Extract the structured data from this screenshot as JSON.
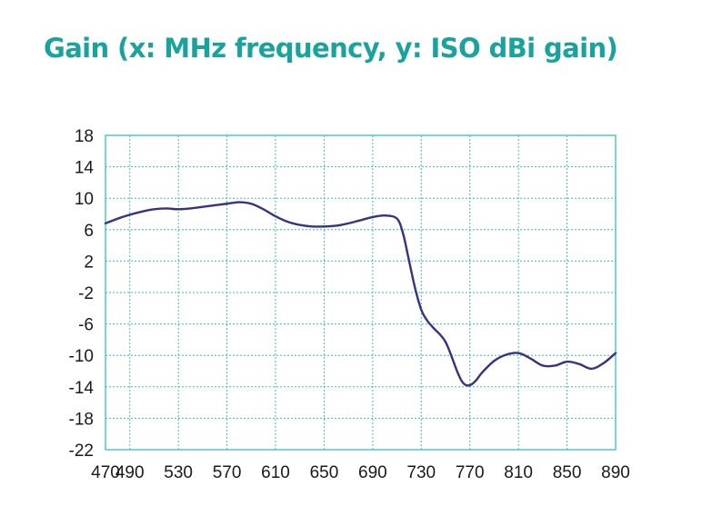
{
  "chart_data": {
    "type": "line",
    "title": "Gain (x: MHz frequency, y: ISO dBi gain)",
    "title_color": "#1aa39c",
    "grid": true,
    "grid_color": "#3cbcc4",
    "line_color": "#353383",
    "xlim": [
      470,
      890
    ],
    "ylim": [
      -22,
      18
    ],
    "x_ticks": [
      "470",
      "490",
      "530",
      "570",
      "610",
      "650",
      "690",
      "730",
      "770",
      "810",
      "850",
      "890"
    ],
    "y_ticks": [
      "18",
      "14",
      "10",
      "6",
      "2",
      "-2",
      "-6",
      "-10",
      "-14",
      "-18",
      "-22"
    ],
    "series": [
      {
        "x": [
          470,
          480,
          490,
          500,
          510,
          520,
          530,
          540,
          550,
          560,
          570,
          580,
          590,
          600,
          610,
          620,
          630,
          640,
          650,
          660,
          670,
          680,
          690,
          700,
          710,
          715,
          720,
          725,
          730,
          735,
          740,
          750,
          760,
          765,
          770,
          775,
          780,
          790,
          800,
          810,
          820,
          830,
          840,
          850,
          860,
          870,
          880,
          890
        ],
        "y": [
          6.8,
          7.4,
          7.9,
          8.3,
          8.6,
          8.7,
          8.6,
          8.7,
          8.9,
          9.1,
          9.3,
          9.5,
          9.3,
          8.6,
          7.7,
          7.0,
          6.6,
          6.4,
          6.4,
          6.5,
          6.8,
          7.2,
          7.6,
          7.8,
          7.4,
          5.5,
          2.0,
          -1.5,
          -4.2,
          -5.6,
          -6.5,
          -8.3,
          -12.2,
          -13.6,
          -13.8,
          -13.2,
          -12.2,
          -10.7,
          -9.9,
          -9.7,
          -10.4,
          -11.3,
          -11.3,
          -10.8,
          -11.1,
          -11.7,
          -11.0,
          -9.7
        ]
      }
    ]
  }
}
